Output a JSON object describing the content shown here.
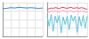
{
  "chart_data": [
    {
      "type": "line",
      "x": [
        0,
        1,
        2,
        3,
        4,
        5,
        6,
        7,
        8,
        9,
        10
      ],
      "xlim": [
        0,
        10
      ],
      "xticks": [
        0,
        2,
        4,
        6,
        8,
        10
      ],
      "ylim": [
        0,
        1
      ],
      "yticks": [
        0,
        0.25,
        0.5,
        0.75,
        1
      ],
      "grid": true,
      "tick_labels": false,
      "series": [
        {
          "color": "#3a7fd5",
          "values": [
            0.82,
            0.83,
            0.85,
            0.84,
            0.86,
            0.85,
            0.84,
            0.85,
            0.84,
            0.83,
            0.84
          ]
        }
      ]
    },
    {
      "type": "line",
      "x": [
        0,
        1,
        2,
        3,
        4,
        5,
        6,
        7,
        8,
        9,
        10,
        11,
        12,
        13,
        14,
        15,
        16,
        17,
        18,
        19,
        20
      ],
      "xlim": [
        0,
        20
      ],
      "xticks": [
        0,
        5,
        10,
        15,
        20
      ],
      "ylim": [
        0,
        1
      ],
      "yticks": [
        0,
        0.25,
        0.5,
        0.75,
        1
      ],
      "grid": true,
      "tick_labels": false,
      "series": [
        {
          "color": "#f2a7b8",
          "values": [
            0.7,
            0.72,
            0.75,
            0.73,
            0.76,
            0.74,
            0.72,
            0.75,
            0.77,
            0.74,
            0.73,
            0.75,
            0.76,
            0.72,
            0.74,
            0.75,
            0.73,
            0.76,
            0.74,
            0.72,
            0.71
          ]
        },
        {
          "color": "#e0405a",
          "values": [
            0.8,
            0.82,
            0.84,
            0.83,
            0.85,
            0.84,
            0.82,
            0.85,
            0.86,
            0.84,
            0.83,
            0.85,
            0.86,
            0.83,
            0.84,
            0.85,
            0.83,
            0.85,
            0.84,
            0.82,
            0.8
          ]
        },
        {
          "color": "#5cc6e0",
          "values": [
            0.6,
            0.3,
            0.65,
            0.15,
            0.6,
            0.4,
            0.62,
            0.1,
            0.58,
            0.35,
            0.6,
            0.2,
            0.63,
            0.45,
            0.6,
            0.12,
            0.59,
            0.3,
            0.62,
            0.25,
            0.6
          ]
        }
      ]
    }
  ]
}
